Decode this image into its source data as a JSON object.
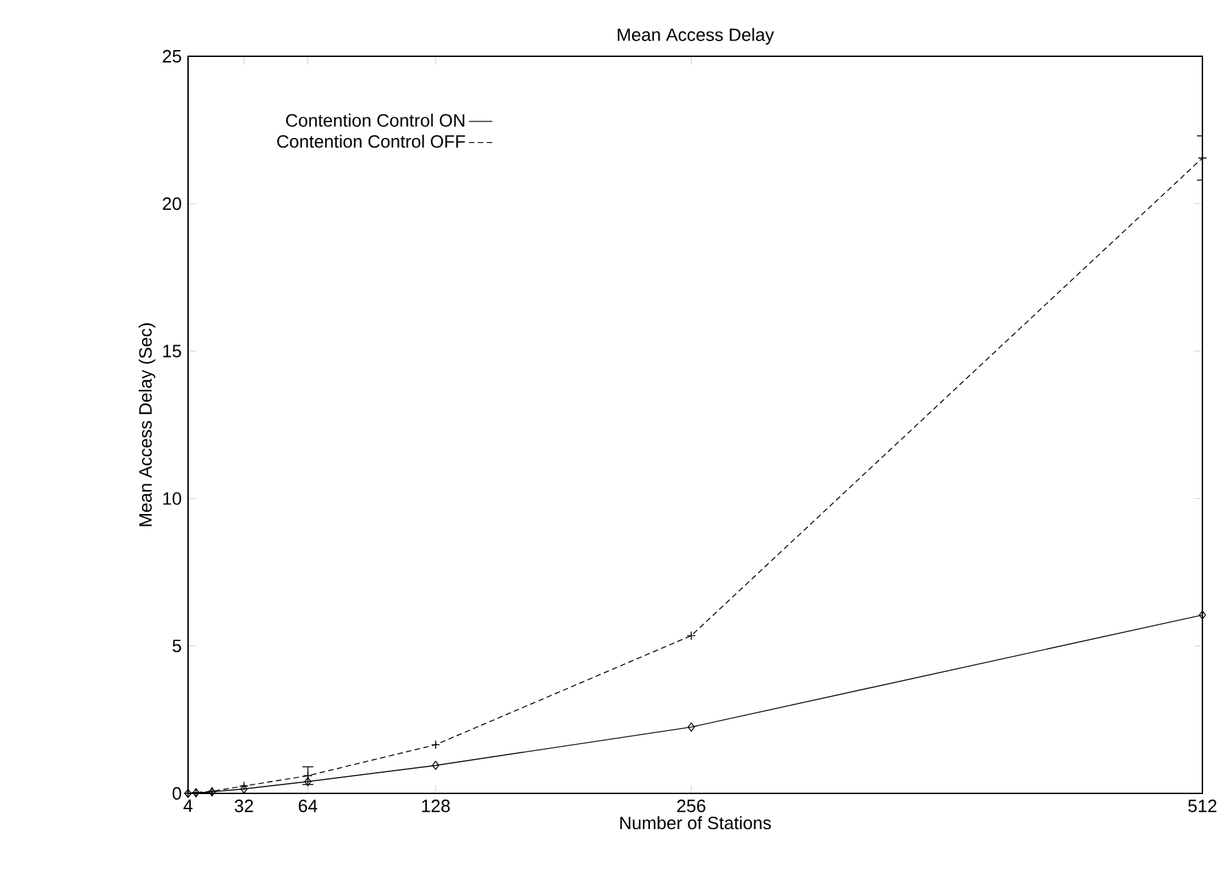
{
  "chart_data": {
    "type": "line",
    "title": "Mean Access Delay",
    "xlabel": "Number of Stations",
    "ylabel": "Mean Access Delay (Sec)",
    "x": [
      4,
      8,
      16,
      32,
      64,
      128,
      256,
      512
    ],
    "series": [
      {
        "name": "Contention Control ON",
        "color": "#000000",
        "line_style": "solid",
        "marker": "diamond",
        "values": [
          0,
          0.02,
          0.05,
          0.15,
          0.4,
          0.95,
          2.25,
          6.05
        ]
      },
      {
        "name": "Contention Control OFF",
        "color": "#000000",
        "line_style": "dashed",
        "marker": "cross",
        "values": [
          0,
          0.03,
          0.07,
          0.25,
          0.6,
          1.65,
          5.35,
          21.55
        ],
        "errors": [
          null,
          null,
          null,
          null,
          0.3,
          null,
          null,
          0.75
        ]
      }
    ],
    "xlim": [
      4,
      512
    ],
    "ylim": [
      0,
      25
    ],
    "xticks": [
      4,
      32,
      64,
      128,
      256,
      512
    ],
    "yticks": [
      0,
      5,
      10,
      15,
      20,
      25
    ],
    "grid": false,
    "legend": "top left"
  }
}
